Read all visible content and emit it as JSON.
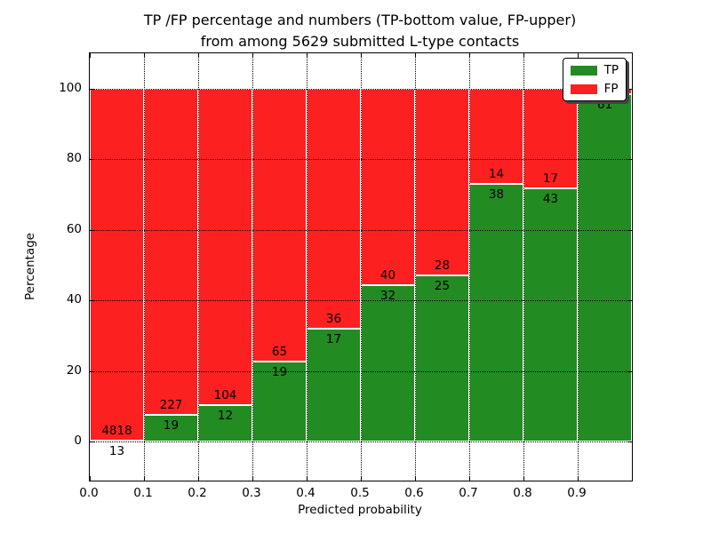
{
  "chart_data": {
    "type": "bar",
    "stacked": true,
    "orientation": "vertical",
    "title": "TP /FP percentage and numbers (TP-bottom value, FP-upper)\nfrom among 5629 submitted L-type contacts",
    "title_line1": "TP /FP percentage and numbers (TP-bottom value, FP-upper)",
    "title_line2": "from among 5629 submitted L-type contacts",
    "xlabel": "Predicted probability",
    "ylabel": "Percentage",
    "xlim": [
      0.0,
      1.0
    ],
    "ylim": [
      -11,
      110
    ],
    "bar_width": 0.1,
    "grid": true,
    "grid_style": "dotted",
    "xtick_labels": [
      "0.0",
      "0.1",
      "0.2",
      "0.3",
      "0.4",
      "0.5",
      "0.6",
      "0.7",
      "0.8",
      "0.9"
    ],
    "ytick_values": [
      0,
      20,
      40,
      60,
      80,
      100
    ],
    "colors": {
      "tp": "#228b22",
      "fp": "#fd2020",
      "grid": "#000000",
      "background": "#ffffff"
    },
    "legend": {
      "position": "upper-right",
      "entries": [
        {
          "label": "TP",
          "color": "#228b22"
        },
        {
          "label": "FP",
          "color": "#fd2020"
        }
      ]
    },
    "bins": [
      {
        "range": [
          0.0,
          0.1
        ],
        "tp": 13,
        "fp": 4818,
        "tp_pct": 0.27
      },
      {
        "range": [
          0.1,
          0.2
        ],
        "tp": 19,
        "fp": 227,
        "tp_pct": 7.7
      },
      {
        "range": [
          0.2,
          0.3
        ],
        "tp": 12,
        "fp": 104,
        "tp_pct": 10.3
      },
      {
        "range": [
          0.3,
          0.4
        ],
        "tp": 19,
        "fp": 65,
        "tp_pct": 22.6
      },
      {
        "range": [
          0.4,
          0.5
        ],
        "tp": 17,
        "fp": 36,
        "tp_pct": 32.1
      },
      {
        "range": [
          0.5,
          0.6
        ],
        "tp": 32,
        "fp": 40,
        "tp_pct": 44.4
      },
      {
        "range": [
          0.6,
          0.7
        ],
        "tp": 25,
        "fp": 28,
        "tp_pct": 47.2
      },
      {
        "range": [
          0.7,
          0.8
        ],
        "tp": 38,
        "fp": 14,
        "tp_pct": 73.1
      },
      {
        "range": [
          0.8,
          0.9
        ],
        "tp": 43,
        "fp": 17,
        "tp_pct": 71.7
      },
      {
        "range": [
          0.9,
          1.0
        ],
        "tp": 61,
        "fp": null,
        "tp_pct": 98.4
      }
    ]
  }
}
